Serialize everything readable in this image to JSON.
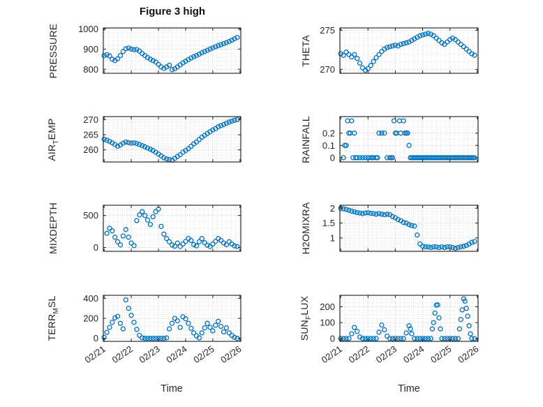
{
  "title": "Figure 3 high",
  "xlabel": "Time",
  "accent_color": "#0072BD",
  "x_axis": {
    "lim": [
      20.97,
      26.03
    ],
    "ticks": [
      21,
      22,
      23,
      24,
      25,
      26
    ],
    "labels": [
      "02/21",
      "02/22",
      "02/23",
      "02/24",
      "02/25",
      "02/26"
    ]
  },
  "chart_data": [
    {
      "type": "scatter",
      "name": "PRESSURE",
      "ylabel_segments": [
        {
          "t": "PRESSURE"
        }
      ],
      "ylim": [
        780,
        1005
      ],
      "yticks": [
        800,
        900,
        1000
      ],
      "ytick_labels": [
        "800",
        "900",
        "1000"
      ],
      "x": [
        21,
        21.1,
        21.2,
        21.3,
        21.4,
        21.5,
        21.6,
        21.7,
        21.8,
        21.9,
        22,
        22.1,
        22.2,
        22.3,
        22.4,
        22.5,
        22.6,
        22.7,
        22.8,
        22.9,
        23,
        23.1,
        23.2,
        23.3,
        23.4,
        23.5,
        23.6,
        23.7,
        23.8,
        23.9,
        24,
        24.1,
        24.2,
        24.3,
        24.4,
        24.5,
        24.6,
        24.7,
        24.8,
        24.9,
        25,
        25.1,
        25.2,
        25.3,
        25.4,
        25.5,
        25.6,
        25.7,
        25.8,
        25.9
      ],
      "y": [
        868,
        872,
        866,
        850,
        843,
        852,
        868,
        888,
        902,
        905,
        900,
        897,
        898,
        890,
        878,
        868,
        858,
        850,
        843,
        836,
        824,
        812,
        804,
        812,
        820,
        798,
        803,
        812,
        822,
        832,
        840,
        848,
        856,
        862,
        868,
        875,
        882,
        888,
        894,
        900,
        906,
        912,
        917,
        922,
        927,
        932,
        938,
        944,
        951,
        958
      ]
    },
    {
      "type": "scatter",
      "name": "THETA",
      "ylabel_segments": [
        {
          "t": "THETA"
        }
      ],
      "ylim": [
        269.5,
        275.3
      ],
      "yticks": [
        270,
        275
      ],
      "ytick_labels": [
        "270",
        "275"
      ],
      "x": [
        21,
        21.1,
        21.2,
        21.3,
        21.4,
        21.5,
        21.6,
        21.7,
        21.8,
        21.9,
        22,
        22.1,
        22.2,
        22.3,
        22.4,
        22.5,
        22.6,
        22.7,
        22.8,
        22.9,
        23,
        23.1,
        23.2,
        23.3,
        23.4,
        23.5,
        23.6,
        23.7,
        23.8,
        23.9,
        24,
        24.1,
        24.2,
        24.3,
        24.4,
        24.5,
        24.6,
        24.7,
        24.8,
        24.9,
        25,
        25.1,
        25.2,
        25.3,
        25.4,
        25.5,
        25.6,
        25.7,
        25.8,
        25.9
      ],
      "y": [
        272,
        271.8,
        272.2,
        271.9,
        271.6,
        271.9,
        271.4,
        270.8,
        270.2,
        269.9,
        270.1,
        270.5,
        271,
        271.5,
        271.9,
        272.3,
        272.6,
        272.8,
        272.9,
        273,
        273.1,
        273,
        273.2,
        273.3,
        273.4,
        273.5,
        273.7,
        273.9,
        274.1,
        274.3,
        274.4,
        274.5,
        274.6,
        274.5,
        274.3,
        274,
        273.7,
        273.4,
        273.2,
        273.5,
        273.8,
        274,
        273.8,
        273.5,
        273.2,
        272.9,
        272.6,
        272.3,
        272,
        271.8
      ]
    },
    {
      "type": "scatter",
      "name": "AIR_TEMP",
      "ylabel_segments": [
        {
          "t": "AIR"
        },
        {
          "t": "T",
          "sub": true
        },
        {
          "t": "EMP"
        }
      ],
      "ylim": [
        256,
        271
      ],
      "yticks": [
        260,
        265,
        270
      ],
      "ytick_labels": [
        "260",
        "265",
        "270"
      ],
      "x": [
        21,
        21.1,
        21.2,
        21.3,
        21.4,
        21.5,
        21.6,
        21.7,
        21.8,
        21.9,
        22,
        22.1,
        22.2,
        22.3,
        22.4,
        22.5,
        22.6,
        22.7,
        22.8,
        22.9,
        23,
        23.1,
        23.2,
        23.3,
        23.4,
        23.5,
        23.6,
        23.7,
        23.8,
        23.9,
        24,
        24.1,
        24.2,
        24.3,
        24.4,
        24.5,
        24.6,
        24.7,
        24.8,
        24.9,
        25,
        25.1,
        25.2,
        25.3,
        25.4,
        25.5,
        25.6,
        25.7,
        25.8,
        25.9
      ],
      "y": [
        263.5,
        263.2,
        262.8,
        262.3,
        261.8,
        261.2,
        261.6,
        262.2,
        262.6,
        262.4,
        262.2,
        262.3,
        262.1,
        261.8,
        261.4,
        261,
        260.6,
        260.2,
        259.8,
        259.2,
        258.6,
        258,
        257.4,
        257,
        256.8,
        256.6,
        257.2,
        257.8,
        258.4,
        259.2,
        259.8,
        260.4,
        261.2,
        262,
        262.6,
        263.4,
        264.2,
        264.8,
        265.4,
        266,
        266.6,
        267,
        267.6,
        268,
        268.4,
        268.8,
        269.2,
        269.5,
        269.8,
        270
      ]
    },
    {
      "type": "scatter",
      "name": "RAINFALL",
      "ylabel_segments": [
        {
          "t": "RAINFALL"
        }
      ],
      "ylim": [
        -0.035,
        0.335
      ],
      "yticks": [
        0,
        0.1,
        0.2
      ],
      "ytick_labels": [
        "0",
        "0.1",
        "0.2"
      ],
      "x": [
        21.1,
        21.15,
        21.2,
        21.25,
        21.3,
        21.35,
        21.4,
        21.45,
        21.5,
        21.55,
        21.6,
        21.7,
        21.8,
        21.9,
        22,
        22.1,
        22.15,
        22.2,
        22.3,
        22.35,
        22.4,
        22.5,
        22.6,
        22.7,
        22.8,
        22.85,
        22.9,
        22.95,
        23,
        23.05,
        23.15,
        23.2,
        23.3,
        23.35,
        23.4,
        23.45,
        23.5,
        23.55,
        23.6,
        23.65,
        23.7,
        23.75,
        23.8,
        23.85,
        23.9,
        23.95,
        24,
        24.05,
        24.1,
        24.15,
        24.2,
        24.25,
        24.3,
        24.35,
        24.4,
        24.45,
        24.5,
        24.55,
        24.6,
        24.65,
        24.7,
        24.75,
        24.8,
        24.85,
        24.9,
        24.95,
        25,
        25.05,
        25.1,
        25.15,
        25.2,
        25.25,
        25.3,
        25.35,
        25.4,
        25.45,
        25.5,
        25.55,
        25.6,
        25.65,
        25.7,
        25.75,
        25.8,
        25.85,
        25.9
      ],
      "y": [
        0,
        0.1,
        0.1,
        0.3,
        0.2,
        0.2,
        0.3,
        0,
        0.2,
        0,
        0,
        0,
        0,
        0,
        0,
        0,
        0,
        0,
        0,
        0,
        0.2,
        0.2,
        0.2,
        0,
        0,
        0,
        0,
        0.3,
        0.2,
        0.2,
        0.3,
        0.2,
        0.3,
        0.2,
        0.2,
        0.2,
        0.1,
        0,
        0,
        0,
        0,
        0,
        0,
        0,
        0,
        0,
        0,
        0,
        0,
        0,
        0,
        0,
        0,
        0,
        0,
        0,
        0,
        0,
        0,
        0,
        0,
        0,
        0,
        0,
        0,
        0,
        0,
        0,
        0,
        0,
        0,
        0,
        0,
        0,
        0,
        0,
        0,
        0,
        0,
        0,
        0,
        0,
        0,
        0,
        0
      ]
    },
    {
      "type": "scatter",
      "name": "MIXDEPTH",
      "ylabel_segments": [
        {
          "t": "MIXDEPTH"
        }
      ],
      "ylim": [
        -60,
        660
      ],
      "yticks": [
        0,
        500
      ],
      "ytick_labels": [
        "0",
        "500"
      ],
      "x": [
        21.1,
        21.2,
        21.3,
        21.4,
        21.5,
        21.6,
        21.7,
        21.8,
        21.9,
        22,
        22.1,
        22.2,
        22.3,
        22.4,
        22.5,
        22.6,
        22.7,
        22.8,
        22.9,
        23,
        23.1,
        23.2,
        23.3,
        23.4,
        23.5,
        23.6,
        23.7,
        23.8,
        23.9,
        24,
        24.1,
        24.2,
        24.3,
        24.4,
        24.5,
        24.6,
        24.7,
        24.8,
        24.9,
        25,
        25.1,
        25.2,
        25.3,
        25.4,
        25.5,
        25.6,
        25.7,
        25.8,
        25.9
      ],
      "y": [
        220,
        300,
        260,
        160,
        90,
        40,
        180,
        280,
        160,
        70,
        30,
        420,
        510,
        560,
        500,
        430,
        360,
        480,
        560,
        600,
        330,
        210,
        140,
        90,
        40,
        20,
        70,
        15,
        55,
        95,
        140,
        110,
        45,
        25,
        90,
        140,
        75,
        35,
        15,
        55,
        95,
        140,
        110,
        70,
        45,
        90,
        55,
        25,
        15
      ]
    },
    {
      "type": "scatter",
      "name": "H2OMIXRA",
      "ylabel_segments": [
        {
          "t": "H2OMIXRA"
        }
      ],
      "ylim": [
        0.55,
        2.1
      ],
      "yticks": [
        1,
        1.5,
        2
      ],
      "ytick_labels": [
        "1",
        "1.5",
        "2"
      ],
      "x": [
        21,
        21.1,
        21.2,
        21.3,
        21.4,
        21.5,
        21.6,
        21.7,
        21.8,
        21.9,
        22,
        22.1,
        22.2,
        22.3,
        22.4,
        22.5,
        22.6,
        22.7,
        22.8,
        22.9,
        23,
        23.1,
        23.2,
        23.3,
        23.4,
        23.5,
        23.6,
        23.7,
        23.8,
        23.9,
        24,
        24.1,
        24.2,
        24.3,
        24.4,
        24.5,
        24.6,
        24.7,
        24.8,
        24.9,
        25,
        25.1,
        25.2,
        25.3,
        25.4,
        25.5,
        25.6,
        25.7,
        25.8,
        25.9
      ],
      "y": [
        2,
        1.98,
        1.96,
        1.93,
        1.9,
        1.88,
        1.85,
        1.84,
        1.82,
        1.84,
        1.85,
        1.83,
        1.82,
        1.8,
        1.82,
        1.8,
        1.78,
        1.8,
        1.78,
        1.72,
        1.68,
        1.62,
        1.58,
        1.52,
        1.5,
        1.45,
        1.42,
        1.4,
        1.1,
        0.8,
        0.72,
        0.7,
        0.7,
        0.68,
        0.7,
        0.7,
        0.68,
        0.7,
        0.68,
        0.7,
        0.7,
        0.68,
        0.65,
        0.68,
        0.7,
        0.72,
        0.75,
        0.8,
        0.85,
        0.88
      ]
    },
    {
      "type": "scatter",
      "name": "TERR_MSL",
      "ylabel_segments": [
        {
          "t": "TERR"
        },
        {
          "t": "M",
          "sub": true
        },
        {
          "t": "SL"
        }
      ],
      "ylim": [
        -30,
        430
      ],
      "yticks": [
        0,
        200,
        400
      ],
      "ytick_labels": [
        "0",
        "200",
        "400"
      ],
      "x": [
        21,
        21.1,
        21.2,
        21.3,
        21.4,
        21.5,
        21.6,
        21.7,
        21.8,
        21.9,
        22,
        22.1,
        22.2,
        22.3,
        22.4,
        22.5,
        22.6,
        22.7,
        22.8,
        22.9,
        23,
        23.1,
        23.2,
        23.3,
        23.4,
        23.5,
        23.6,
        23.7,
        23.8,
        23.9,
        24,
        24.1,
        24.2,
        24.3,
        24.4,
        24.5,
        24.6,
        24.7,
        24.8,
        24.9,
        25,
        25.1,
        25.2,
        25.3,
        25.4,
        25.5,
        25.6,
        25.7,
        25.8,
        25.9
      ],
      "y": [
        10,
        60,
        110,
        160,
        205,
        220,
        150,
        95,
        385,
        300,
        230,
        160,
        90,
        30,
        5,
        0,
        0,
        0,
        0,
        0,
        0,
        0,
        0,
        5,
        95,
        150,
        200,
        175,
        110,
        215,
        195,
        150,
        100,
        55,
        25,
        5,
        55,
        105,
        150,
        110,
        75,
        130,
        170,
        120,
        65,
        105,
        55,
        30,
        10,
        0
      ]
    },
    {
      "type": "scatter",
      "name": "SUN_FLUX",
      "ylabel_segments": [
        {
          "t": "SUN"
        },
        {
          "t": "F",
          "sub": true
        },
        {
          "t": "LUX"
        }
      ],
      "ylim": [
        -18,
        272
      ],
      "yticks": [
        0,
        100,
        200
      ],
      "ytick_labels": [
        "0",
        "100",
        "200"
      ],
      "x": [
        21,
        21.1,
        21.2,
        21.3,
        21.4,
        21.5,
        21.6,
        21.7,
        21.8,
        21.9,
        22,
        22.1,
        22.2,
        22.3,
        22.4,
        22.5,
        22.6,
        22.7,
        22.8,
        22.9,
        23,
        23.1,
        23.2,
        23.3,
        23.4,
        23.5,
        23.55,
        23.6,
        23.7,
        23.8,
        23.9,
        24,
        24.1,
        24.2,
        24.3,
        24.35,
        24.4,
        24.45,
        24.5,
        24.55,
        24.6,
        24.65,
        24.7,
        24.8,
        24.9,
        25,
        25.1,
        25.2,
        25.3,
        25.35,
        25.4,
        25.45,
        25.5,
        25.55,
        25.6,
        25.65,
        25.7,
        25.75,
        25.8,
        25.9
      ],
      "y": [
        0,
        0,
        0,
        0,
        30,
        70,
        45,
        10,
        0,
        0,
        0,
        0,
        0,
        0,
        40,
        85,
        55,
        15,
        0,
        0,
        0,
        0,
        0,
        0,
        35,
        80,
        60,
        30,
        0,
        0,
        0,
        0,
        0,
        0,
        0,
        60,
        100,
        160,
        210,
        212,
        130,
        60,
        0,
        0,
        0,
        0,
        0,
        0,
        0,
        60,
        120,
        180,
        250,
        235,
        190,
        140,
        80,
        30,
        0,
        0
      ]
    }
  ]
}
